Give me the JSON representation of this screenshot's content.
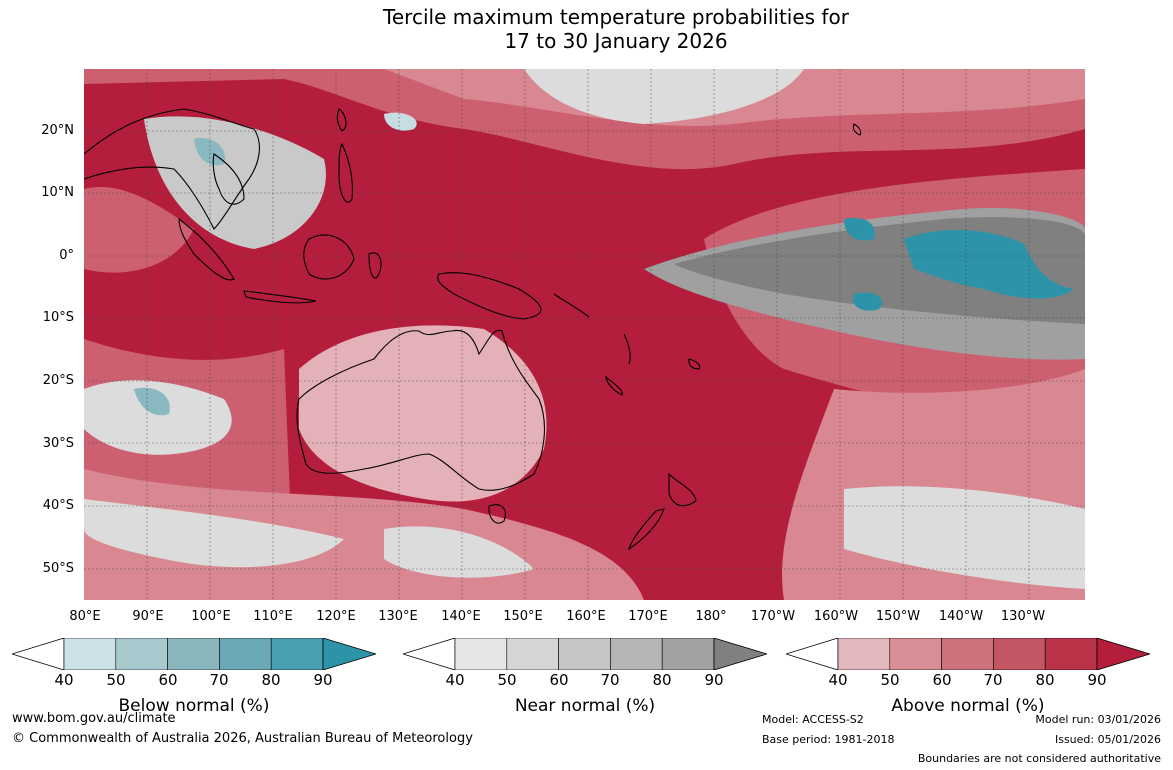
{
  "title": {
    "line1": "Tercile maximum temperature probabilities for",
    "line2": "17 to 30 January 2026"
  },
  "map": {
    "lat_labels": [
      "20°N",
      "10°N",
      "0°",
      "10°S",
      "20°S",
      "30°S",
      "40°S",
      "50°S"
    ],
    "lon_labels": [
      "80°E",
      "90°E",
      "100°E",
      "110°E",
      "120°E",
      "130°E",
      "140°E",
      "150°E",
      "160°E",
      "170°E",
      "180°",
      "170°W",
      "160°W",
      "150°W",
      "140°W",
      "130°W"
    ],
    "colors": {
      "above_90": "#b41e3c",
      "above_80": "#c0394f",
      "above_70": "#cc6070",
      "above_60": "#d98791",
      "above_50": "#e4b1b8",
      "near_90": "#808080",
      "near_80": "#a0a0a0",
      "near_60": "#c9c9c9",
      "near_50": "#dcdcdc",
      "below_90": "#2c93a9",
      "below_60": "#8ab8c1",
      "below_50": "#c8dde3",
      "land_outline": "#000000"
    }
  },
  "legends": {
    "below": {
      "label": "Below normal (%)",
      "colors": [
        "#cde2e8",
        "#a8c9ce",
        "#89b6bc",
        "#6aa8b5",
        "#4aa0b1",
        "#2c93a9"
      ]
    },
    "near": {
      "label": "Near normal (%)",
      "colors": [
        "#e6e6e6",
        "#d6d6d6",
        "#c6c6c6",
        "#b6b6b6",
        "#a2a2a2",
        "#808080"
      ]
    },
    "above": {
      "label": "Above normal (%)",
      "colors": [
        "#e2b7bd",
        "#d88f98",
        "#cc727d",
        "#c35565",
        "#b93349",
        "#b41e3c"
      ]
    },
    "ticks": [
      "40",
      "50",
      "60",
      "70",
      "80",
      "90"
    ]
  },
  "footer": {
    "url": "www.bom.gov.au/climate",
    "copyright": "© Commonwealth of Australia 2026, Australian Bureau of Meteorology",
    "model": "Model: ACCESS-S2",
    "base_period": "Base period: 1981-2018",
    "model_run": "Model run: 03/01/2026",
    "issued": "Issued: 05/01/2026",
    "disclaimer": "Boundaries are not considered authoritative"
  }
}
